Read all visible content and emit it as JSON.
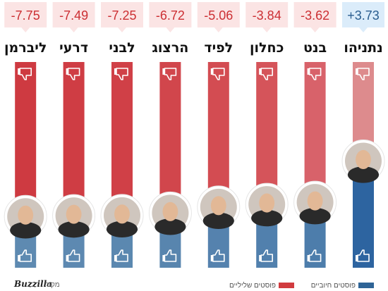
{
  "chart_data": {
    "type": "bar",
    "categories": [
      "נתניהו",
      "בנט",
      "כחלון",
      "לפיד",
      "הרצוג",
      "לבני",
      "דרעי",
      "ליברמן"
    ],
    "series": [
      {
        "name": "פוסטים חיוביים",
        "values": [
          51.9,
          31.8,
          30.8,
          29.5,
          26.6,
          25.4,
          25.3,
          24.9
        ]
      },
      {
        "name": "פוסטים שליליים",
        "values": [
          48.1,
          68.2,
          69.2,
          70.5,
          73.4,
          74.6,
          74.7,
          75.1
        ]
      }
    ],
    "scores": [
      "+3.73",
      "-3.62",
      "-3.84",
      "-5.06",
      "-6.72",
      "-7.25",
      "-7.49",
      "-7.75"
    ],
    "ylim": [
      0,
      100
    ],
    "legend": {
      "position": "bottom-right"
    }
  },
  "legend": {
    "positive_label": "פוסטים חיוביים",
    "negative_label": "פוסטים שליליים"
  },
  "colors": {
    "positive": "#2f6496",
    "negative": "#d13b3f",
    "bubble_positive": "#dbecfa",
    "bubble_negative": "#fbe4e4",
    "score_positive": "#2a5d8f",
    "score_negative": "#cc2f33"
  },
  "footer": {
    "brand": "Buzzilla",
    "source_label": "מקור"
  }
}
